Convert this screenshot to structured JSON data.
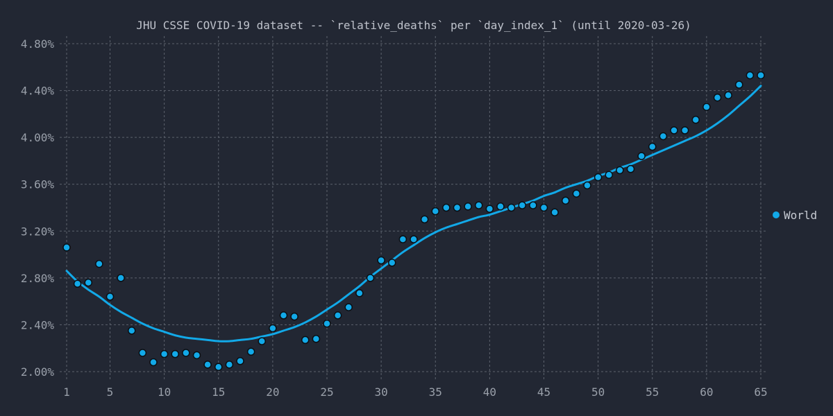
{
  "chart_data": {
    "type": "scatter",
    "title": "JHU CSSE COVID-19 dataset -- `relative_deaths` per `day_index_1` (until 2020-03-26)",
    "xlabel": "",
    "ylabel": "",
    "xlim": [
      1,
      65
    ],
    "ylim": [
      2.0,
      4.8
    ],
    "x_ticks": [
      1,
      5,
      10,
      15,
      20,
      25,
      30,
      35,
      40,
      45,
      50,
      55,
      60,
      65
    ],
    "y_ticks": [
      2.0,
      2.4,
      2.8,
      3.2,
      3.6,
      4.0,
      4.4,
      4.8
    ],
    "y_tick_labels": [
      "2.00%",
      "2.40%",
      "2.80%",
      "3.20%",
      "3.60%",
      "4.00%",
      "4.40%",
      "4.80%"
    ],
    "grid": true,
    "legend_position": "right",
    "colors": {
      "series": "#12a9e8",
      "marker_edge": "#0b0f14",
      "background": "#222733"
    },
    "series": [
      {
        "name": "World",
        "x": [
          1,
          2,
          3,
          4,
          5,
          6,
          7,
          8,
          9,
          10,
          11,
          12,
          13,
          14,
          15,
          16,
          17,
          18,
          19,
          20,
          21,
          22,
          23,
          24,
          25,
          26,
          27,
          28,
          29,
          30,
          31,
          32,
          33,
          34,
          35,
          36,
          37,
          38,
          39,
          40,
          41,
          42,
          43,
          44,
          45,
          46,
          47,
          48,
          49,
          50,
          51,
          52,
          53,
          54,
          55,
          56,
          57,
          58,
          59,
          60,
          61,
          62,
          63,
          64,
          65
        ],
        "y": [
          3.06,
          2.75,
          2.76,
          2.92,
          2.64,
          2.8,
          2.35,
          2.16,
          2.08,
          2.15,
          2.15,
          2.16,
          2.14,
          2.06,
          2.04,
          2.06,
          2.09,
          2.17,
          2.26,
          2.37,
          2.48,
          2.47,
          2.27,
          2.28,
          2.41,
          2.48,
          2.55,
          2.67,
          2.8,
          2.95,
          2.93,
          3.13,
          3.13,
          3.3,
          3.37,
          3.4,
          3.4,
          3.41,
          3.42,
          3.39,
          3.41,
          3.4,
          3.42,
          3.42,
          3.4,
          3.36,
          3.46,
          3.52,
          3.59,
          3.66,
          3.68,
          3.72,
          3.73,
          3.84,
          3.92,
          4.01,
          4.06,
          4.06,
          4.15,
          4.26,
          4.34,
          4.36,
          4.45,
          4.53,
          4.53
        ],
        "trend": {
          "x": [
            1,
            2,
            3,
            4,
            5,
            6,
            7,
            8,
            9,
            10,
            11,
            12,
            13,
            14,
            15,
            16,
            17,
            18,
            19,
            20,
            21,
            22,
            23,
            24,
            25,
            26,
            27,
            28,
            29,
            30,
            31,
            32,
            33,
            34,
            35,
            36,
            37,
            38,
            39,
            40,
            41,
            42,
            43,
            44,
            45,
            46,
            47,
            48,
            49,
            50,
            51,
            52,
            53,
            54,
            55,
            56,
            57,
            58,
            59,
            60,
            61,
            62,
            63,
            64,
            65
          ],
          "y": [
            2.86,
            2.77,
            2.7,
            2.64,
            2.57,
            2.51,
            2.46,
            2.41,
            2.37,
            2.34,
            2.31,
            2.29,
            2.28,
            2.27,
            2.26,
            2.26,
            2.27,
            2.28,
            2.3,
            2.32,
            2.35,
            2.38,
            2.42,
            2.47,
            2.53,
            2.59,
            2.66,
            2.73,
            2.81,
            2.88,
            2.95,
            3.02,
            3.08,
            3.14,
            3.19,
            3.23,
            3.26,
            3.29,
            3.32,
            3.34,
            3.37,
            3.4,
            3.43,
            3.46,
            3.5,
            3.53,
            3.57,
            3.6,
            3.63,
            3.67,
            3.7,
            3.74,
            3.77,
            3.81,
            3.85,
            3.89,
            3.93,
            3.97,
            4.01,
            4.06,
            4.12,
            4.19,
            4.27,
            4.35,
            4.44
          ]
        }
      }
    ]
  }
}
